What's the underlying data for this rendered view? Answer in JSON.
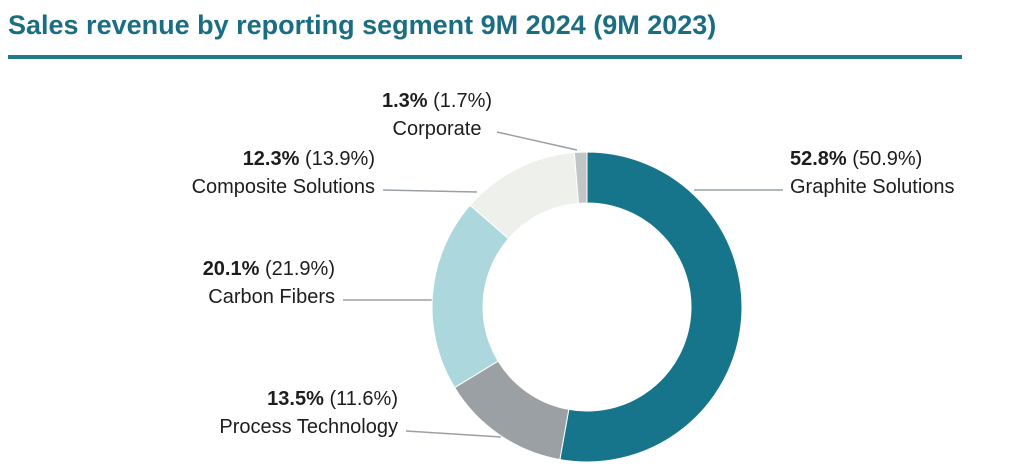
{
  "title": "Sales revenue by reporting segment 9M 2024 (9M 2023)",
  "colors": {
    "title": "#1b6e82",
    "title_rule": "#1f7a8c",
    "label_text": "#1d1d1d",
    "leader_line": "#9aa0a5"
  },
  "chart_data": {
    "type": "pie",
    "subtype": "donut",
    "title": "Sales revenue by reporting segment 9M 2024 (9M 2023)",
    "start_angle_deg": 0,
    "direction": "clockwise",
    "units": "%",
    "segments": [
      {
        "label": "Graphite Solutions",
        "value": 52.8,
        "pct_2024": "52.8%",
        "pct_2023": "(50.9%)",
        "color": "#16758a"
      },
      {
        "label": "Process Technology",
        "value": 13.5,
        "pct_2024": "13.5%",
        "pct_2023": "(11.6%)",
        "color": "#9ba0a4"
      },
      {
        "label": "Carbon Fibers",
        "value": 20.1,
        "pct_2024": "20.1%",
        "pct_2023": "(21.9%)",
        "color": "#abd7dd"
      },
      {
        "label": "Composite Solutions",
        "value": 12.3,
        "pct_2024": "12.3%",
        "pct_2023": "(13.9%)",
        "color": "#eef0ec"
      },
      {
        "label": "Corporate",
        "value": 1.3,
        "pct_2024": "1.3%",
        "pct_2023": "(1.7%)",
        "color": "#c1c5c6"
      }
    ]
  }
}
